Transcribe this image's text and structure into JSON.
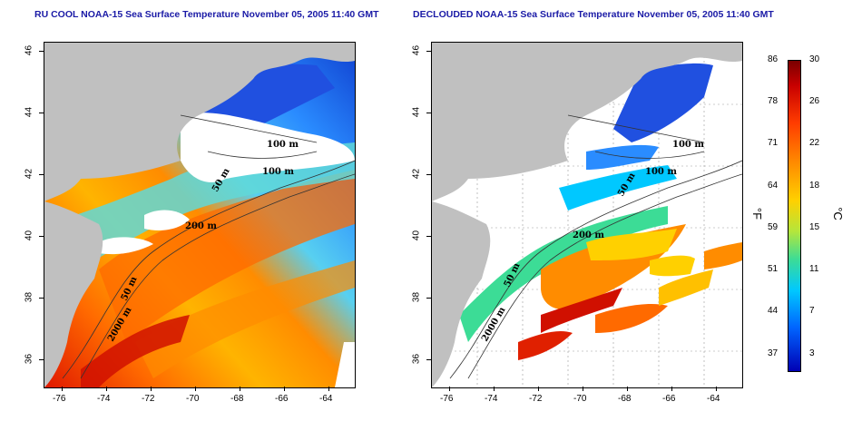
{
  "titles": {
    "left": "RU COOL NOAA-15 Sea Surface Temperature November 05, 2005 11:40 GMT",
    "right": "DECLOUDED NOAA-15 Sea Surface Temperature November 05, 2005 11:40 GMT"
  },
  "axes": {
    "x_ticks": [
      "-76",
      "-74",
      "-72",
      "-70",
      "-68",
      "-66",
      "-64"
    ],
    "y_ticks": [
      "36",
      "38",
      "40",
      "42",
      "44",
      "46"
    ]
  },
  "contour_labels": {
    "depth_100_a": "100 m",
    "depth_100_b": "100 m",
    "depth_50_a": "50 m",
    "depth_200": "200 m",
    "depth_50_b": "50 m",
    "depth_2000": "2000 m"
  },
  "colorbar": {
    "fahrenheit_ticks": [
      "86",
      "78",
      "71",
      "64",
      "59",
      "51",
      "44",
      "37"
    ],
    "celsius_ticks": [
      "30",
      "26",
      "22",
      "18",
      "15",
      "11",
      "7",
      "3"
    ],
    "fahrenheit_unit": "°F",
    "celsius_unit": "°C",
    "range_c": [
      0,
      30
    ]
  },
  "colors": {
    "title": "#1a1aa6",
    "land": "#c0c0c0",
    "cloud": "#ffffff"
  }
}
